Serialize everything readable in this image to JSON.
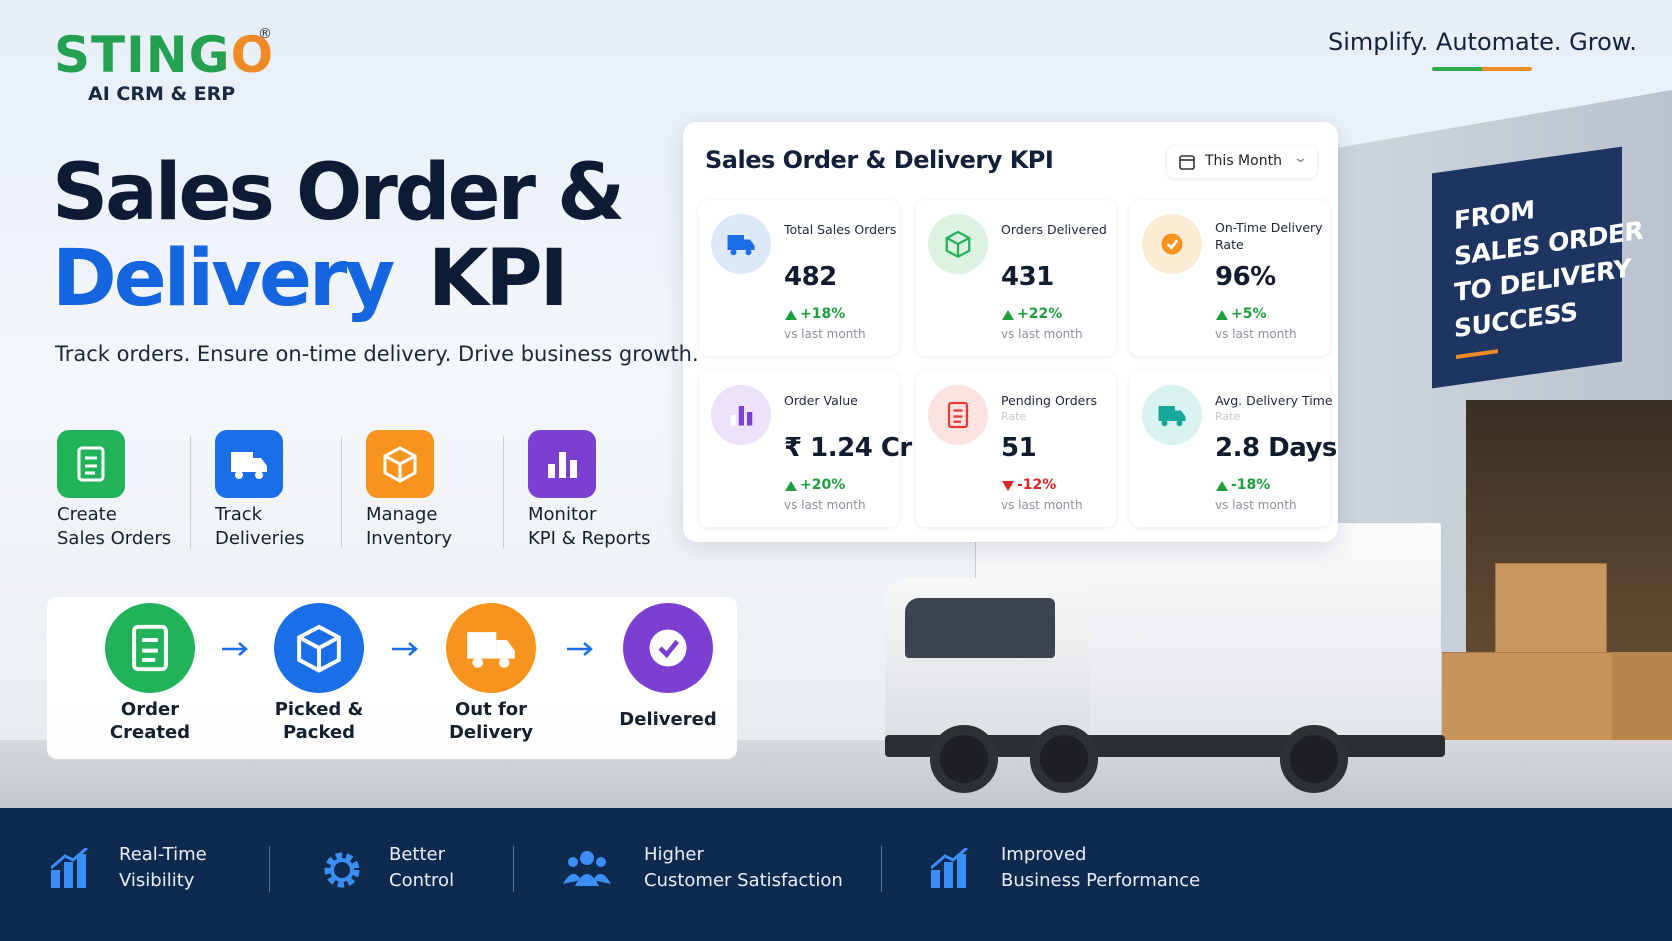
{
  "brand": {
    "name": "STINGO",
    "mark": "®",
    "tagline": "AI CRM & ERP"
  },
  "slogan": "Simplify. Automate. Grow.",
  "hero": {
    "line1": "Sales Order &",
    "line2_accent": "Delivery",
    "line2_rest": "KPI",
    "subtitle": "Track orders. Ensure on-time delivery. Drive business growth."
  },
  "features": [
    {
      "lines": [
        "Create",
        "Sales Orders"
      ]
    },
    {
      "lines": [
        "Track",
        "Deliveries"
      ]
    },
    {
      "lines": [
        "Manage",
        "Inventory"
      ]
    },
    {
      "lines": [
        "Monitor",
        "KPI & Reports"
      ]
    }
  ],
  "flow": [
    {
      "lines": [
        "Order",
        "Created"
      ]
    },
    {
      "lines": [
        "Picked &",
        "Packed"
      ]
    },
    {
      "lines": [
        "Out for",
        "Delivery"
      ]
    },
    {
      "lines": [
        "Delivered"
      ]
    }
  ],
  "dashboard": {
    "title": "Sales Order & Delivery KPI",
    "filter": "This Month",
    "kpis": [
      {
        "label": [
          "Total Sales Orders"
        ],
        "value": "482",
        "change": "+18%",
        "trend": "up",
        "note": "vs last month"
      },
      {
        "label": [
          "Orders Delivered"
        ],
        "value": "431",
        "change": "+22%",
        "trend": "up",
        "note": "vs last month"
      },
      {
        "label": [
          "On-Time Delivery",
          "Rate"
        ],
        "value": "96%",
        "change": "+5%",
        "trend": "up",
        "note": "vs last month"
      },
      {
        "label": [
          "Order Value"
        ],
        "value": "₹ 1.24 Cr",
        "change": "+20%",
        "trend": "up",
        "note": "vs last month"
      },
      {
        "label": [
          "Pending Orders"
        ],
        "faint": "Rate",
        "value": "51",
        "change": "-12%",
        "trend": "down",
        "note": "vs last month"
      },
      {
        "label": [
          "Avg. Delivery Time"
        ],
        "faint": "Rate",
        "value": "2.8 Days",
        "change": "-18%",
        "trend": "up",
        "note": "vs last month"
      }
    ]
  },
  "sign": [
    "FROM",
    "SALES ORDER",
    "TO DELIVERY",
    "SUCCESS"
  ],
  "benefits": [
    {
      "lines": [
        "Real-Time",
        "Visibility"
      ]
    },
    {
      "lines": [
        "Better",
        "Control"
      ]
    },
    {
      "lines": [
        "Higher",
        "Customer Satisfaction"
      ]
    },
    {
      "lines": [
        "Improved",
        "Business Performance"
      ]
    }
  ]
}
